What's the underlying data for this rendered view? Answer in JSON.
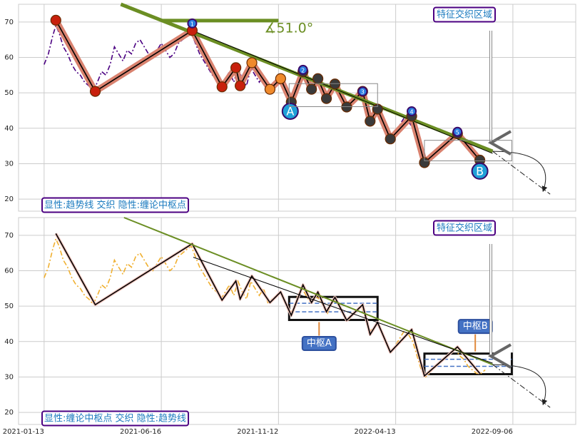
{
  "chart_data": [
    {
      "type": "line",
      "ylim": [
        16.6,
        75
      ],
      "yticks": [
        20,
        30,
        40,
        50,
        60,
        70
      ],
      "xlim": [
        -24,
        499
      ],
      "grid": true,
      "annotation": "显性:趋势线 交织 隐性:缠论中枢点",
      "region_label": "特征交织区域",
      "angle_label": "∡51.0°",
      "series": [
        {
          "color": "#4b0082",
          "dash": true,
          "x": [
            0,
            4,
            8,
            11,
            14,
            18,
            22,
            26,
            30,
            34,
            38,
            42,
            46,
            50,
            54,
            58,
            62,
            66,
            70,
            74,
            78,
            82,
            86,
            90,
            94,
            98,
            102,
            106,
            110,
            114,
            118,
            122,
            126,
            130,
            134,
            138,
            142,
            146,
            150,
            154,
            158,
            162,
            166,
            170,
            174,
            178,
            182,
            186,
            190,
            194,
            198,
            202,
            206,
            210,
            214,
            218,
            222,
            226,
            230,
            234,
            238,
            242,
            246,
            250,
            254,
            258,
            262,
            266,
            270,
            274,
            278,
            282,
            286,
            290,
            294,
            298,
            302,
            306,
            310,
            314,
            318,
            322,
            326,
            330,
            334,
            338,
            342,
            346,
            350,
            354,
            358
          ],
          "values": [
            58,
            61,
            66,
            69,
            67,
            63,
            61,
            58,
            56,
            55,
            53,
            52,
            50.5,
            53,
            56,
            55,
            58,
            63,
            61,
            59,
            62,
            61,
            64,
            65,
            63,
            61,
            60,
            62,
            64,
            62,
            60,
            61,
            64,
            65,
            66,
            67,
            64,
            61,
            59,
            57,
            55,
            54,
            52,
            54,
            56,
            53,
            57,
            54,
            52,
            57,
            55,
            53,
            55,
            51,
            52,
            53,
            54,
            51,
            48,
            49,
            53,
            55,
            53,
            51,
            53,
            52,
            50,
            48,
            51,
            52,
            49,
            47,
            46,
            48,
            49,
            50,
            46,
            43,
            44,
            45,
            42,
            39,
            37,
            39,
            41,
            43,
            42,
            40,
            36,
            32,
            30
          ]
        },
        {
          "color": "#000000",
          "halo": "#d9826f",
          "x": [
            11,
            48,
            139,
            167,
            180,
            184,
            195,
            212,
            222,
            232,
            243,
            251,
            257,
            265,
            273,
            284,
            299,
            306,
            313,
            325,
            345,
            357,
            388,
            409
          ],
          "values": [
            70.5,
            50.4,
            67.6,
            51.7,
            57.1,
            52,
            58.5,
            51,
            54,
            47.4,
            56,
            51,
            54,
            48.4,
            52.5,
            46,
            50.4,
            42,
            45.4,
            37,
            43.4,
            30.3,
            38.5,
            31
          ]
        },
        {
          "color": "#6b8e23",
          "x": [
            72,
            421
          ],
          "values": [
            75,
            33.5
          ]
        },
        {
          "color": "#000000",
          "x": [
            139,
            421
          ],
          "values": [
            67.6,
            32.9
          ]
        }
      ],
      "projection": {
        "x": [
          421,
          475
        ],
        "values": [
          33.5,
          21.4
        ]
      },
      "angle_bar": {
        "x": [
          111,
          220
        ],
        "values": [
          70.4,
          70.4
        ]
      },
      "pivots": [
        {
          "label": "1",
          "x": 139,
          "y": 69.6
        },
        {
          "label": "2",
          "x": 243,
          "y": 56.5
        },
        {
          "label": "3",
          "x": 299,
          "y": 50.4
        },
        {
          "label": "4",
          "x": 345,
          "y": 44.8
        },
        {
          "label": "5",
          "x": 388,
          "y": 39
        },
        {
          "label": "A",
          "x": 231,
          "y": 44.8
        },
        {
          "label": "B",
          "x": 409,
          "y": 27.9
        }
      ]
    },
    {
      "type": "line",
      "ylim": [
        16.6,
        75
      ],
      "yticks": [
        20,
        30,
        40,
        50,
        60,
        70
      ],
      "xlim": [
        -24,
        499
      ],
      "grid": true,
      "annotation": "显性:缠论中枢点 交织 隐性:趋势线",
      "region_label": "特征交织区域",
      "xticks": [
        {
          "value": 0,
          "label": "2021-01-13"
        },
        {
          "value": 110,
          "label": "2021-06-16"
        },
        {
          "value": 220,
          "label": "2021-11-12"
        },
        {
          "value": 330,
          "label": "2022-04-13"
        },
        {
          "value": 440,
          "label": "2022-09-06"
        }
      ],
      "series": [
        {
          "color": "#f0b030",
          "dash": true,
          "x": [
            0,
            4,
            8,
            11,
            14,
            18,
            22,
            26,
            30,
            34,
            38,
            42,
            46,
            50,
            54,
            58,
            62,
            66,
            70,
            74,
            78,
            82,
            86,
            90,
            94,
            98,
            102,
            106,
            110,
            114,
            118,
            122,
            126,
            130,
            134,
            138,
            142,
            146,
            150,
            154,
            158,
            162,
            166,
            170,
            174,
            178,
            182,
            186,
            190,
            194,
            198,
            202,
            206,
            210,
            214,
            218,
            222,
            226,
            230,
            234,
            238,
            242,
            246,
            250,
            254,
            258,
            262,
            266,
            270,
            274,
            278,
            282,
            286,
            290,
            294,
            298,
            302,
            306,
            310,
            314,
            318,
            322,
            326,
            330,
            334,
            338,
            342,
            346,
            350,
            354,
            358,
            362,
            366,
            370,
            374,
            378,
            382,
            386,
            390,
            394,
            398,
            402,
            406,
            410,
            414
          ],
          "values": [
            58,
            61,
            66,
            69,
            67,
            63,
            61,
            58,
            56,
            55,
            53,
            52,
            50.5,
            53,
            56,
            55,
            58,
            63,
            61,
            59,
            62,
            61,
            64,
            65,
            63,
            61,
            60,
            62,
            64,
            62,
            60,
            61,
            64,
            65,
            66,
            67,
            64,
            61,
            59,
            57,
            55,
            54,
            52,
            54,
            56,
            53,
            57,
            54,
            52,
            57,
            55,
            53,
            55,
            51,
            52,
            53,
            54,
            51,
            48,
            49,
            53,
            55,
            53,
            51,
            53,
            52,
            50,
            48,
            51,
            52,
            49,
            47,
            46,
            48,
            49,
            50,
            46,
            43,
            44,
            45,
            42,
            39,
            37,
            39,
            41,
            43,
            42,
            40,
            36,
            32,
            30,
            31,
            33,
            34,
            35,
            36,
            37,
            38,
            36,
            35,
            33,
            32,
            31,
            31,
            32
          ]
        },
        {
          "color": "#000000",
          "halo": "#f2c4bc",
          "x": [
            11,
            48,
            139,
            167,
            180,
            184,
            195,
            212,
            222,
            232,
            243,
            251,
            257,
            265,
            273,
            284,
            299,
            306,
            313,
            325,
            345,
            357,
            388,
            409
          ],
          "values": [
            70.5,
            50.4,
            67.6,
            51.7,
            57.1,
            52,
            58.5,
            51,
            54,
            47.4,
            56,
            51,
            54,
            48.4,
            52.5,
            46,
            50.4,
            42,
            45.4,
            37,
            43.4,
            30.3,
            38.5,
            31
          ]
        },
        {
          "color": "#6b8e23",
          "x": [
            75,
            421
          ],
          "values": [
            75,
            33.5
          ]
        },
        {
          "color": "#000000",
          "x": [
            140,
            421
          ],
          "values": [
            63.8,
            33.9
          ]
        }
      ],
      "projection": {
        "x": [
          421,
          475
        ],
        "values": [
          33.5,
          21.4
        ]
      },
      "centers": [
        {
          "label": "中枢A",
          "x": [
            230,
            313
          ],
          "values": [
            46.1,
            52.6
          ],
          "inner": [
            48.4,
            50.8
          ]
        },
        {
          "label": "中枢B",
          "x": [
            357,
            439
          ],
          "values": [
            30.8,
            36.6
          ],
          "inner": [
            33,
            35
          ]
        }
      ]
    }
  ]
}
